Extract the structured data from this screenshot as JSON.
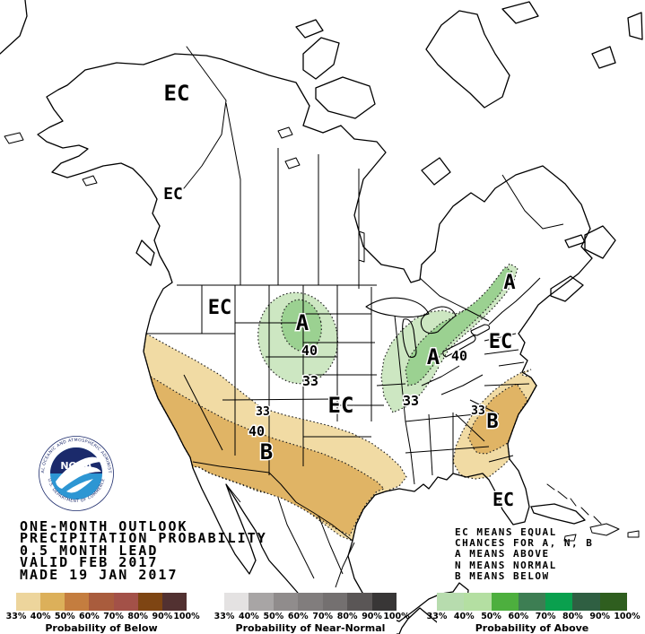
{
  "title_block": {
    "lines": [
      "ONE-MONTH OUTLOOK",
      "PRECIPITATION PROBABILITY",
      "0.5 MONTH LEAD",
      "VALID FEB 2017",
      "MADE 19 JAN 2017"
    ]
  },
  "legend_block": {
    "lines": [
      "EC MEANS EQUAL",
      "CHANCES FOR A, N, B",
      "A MEANS ABOVE",
      "N MEANS NORMAL",
      "B MEANS BELOW"
    ]
  },
  "noaa_logo": {
    "acronym": "NOAA",
    "ring_top": "NATIONAL OCEANIC AND ATMOSPHERIC ADMINISTRATION",
    "ring_bottom": "U.S. DEPARTMENT OF COMMERCE",
    "colors": {
      "navy": "#1b2a6b",
      "sky": "#2d96d3",
      "white": "#ffffff"
    }
  },
  "map": {
    "background": "#ffffff",
    "line_color": "#000000",
    "labels": {
      "ec_alaska": "EC",
      "ec_panhandle": "EC",
      "ec_northwest": "EC",
      "a_plains": "A",
      "v40_plains": "40",
      "v33_plains": "33",
      "ec_central": "EC",
      "a_ohio_valley": "A",
      "v40_ohio_valley": "40",
      "v33_ohio_valley": "33",
      "a_northeast": "A",
      "ec_midatlantic": "EC",
      "b_southeast": "B",
      "v33_southeast": "33",
      "b_southwest": "B",
      "v40_southwest": "40",
      "v33_southwest": "33",
      "ec_florida": "EC"
    },
    "region_colors": {
      "above_33": "#cde7c2",
      "above_40": "#9bd191",
      "below_33": "#f1dba4",
      "below_40": "#e0b465"
    }
  },
  "colorbars": {
    "tick_labels": [
      "33%",
      "40%",
      "50%",
      "60%",
      "70%",
      "80%",
      "90%",
      "100%"
    ],
    "bars": {
      "below": {
        "label": "Probability of Below",
        "colors": [
          "#edd59c",
          "#dcb05a",
          "#c47d3f",
          "#a95c3d",
          "#a35148",
          "#7e4513",
          "#523131"
        ]
      },
      "near_normal": {
        "label": "Probability of Near-Normal",
        "colors": [
          "#e4e2e2",
          "#a8a5a5",
          "#908c8c",
          "#817d7d",
          "#747070",
          "#5a5656",
          "#383636"
        ]
      },
      "above": {
        "label": "Probability of Above",
        "colors": [
          "#b7dcae",
          "#b4dfa2",
          "#4daf3e",
          "#3d7e53",
          "#0aa04e",
          "#2f5f42",
          "#2f5e1f"
        ]
      }
    }
  }
}
